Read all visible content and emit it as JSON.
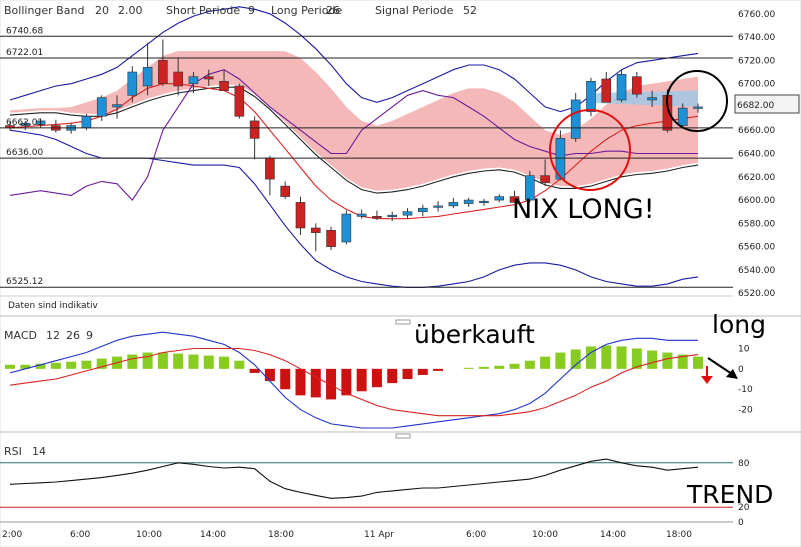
{
  "panels": {
    "price": {
      "indicator_name": "Bollinger Band",
      "params": [
        {
          "label": "20",
          "color": "#1a1aa6"
        },
        {
          "label": "2.00",
          "color": "#1a1aa6"
        },
        {
          "label": "Short Periode",
          "color": "#444"
        },
        {
          "label": "9",
          "color": "#444"
        },
        {
          "label": "Long Periode",
          "color": "#444"
        },
        {
          "label": "26",
          "color": "#444"
        },
        {
          "label": "Signal Periode",
          "color": "#444"
        },
        {
          "label": "52",
          "color": "#444"
        }
      ],
      "hlines": [
        "6740.68",
        "6722.01",
        "6662.01",
        "6636.00",
        "6525.12"
      ],
      "current_price": "6682.00",
      "note": "Daten sind indikativ"
    },
    "macd": {
      "name": "MACD",
      "params": [
        {
          "label": "12",
          "color": "#cc0000"
        },
        {
          "label": "26",
          "color": "#cc0000"
        },
        {
          "label": "9",
          "color": "#cc0000"
        }
      ]
    },
    "rsi": {
      "name": "RSI",
      "param": "14"
    }
  },
  "annotations": {
    "nix_long": "NIX LONG!",
    "ueberkauft": "überkauft",
    "long": "long",
    "trend": "TREND"
  },
  "colors": {
    "bull": "#1e90d6",
    "bear": "#cc2222",
    "cloud": "#f2a0a0",
    "cloud_blue": "#9cc8e8",
    "band": "#1a1aa6",
    "macd_pos": "#88cc22",
    "macd_neg": "#cc1111"
  },
  "chart_data": [
    {
      "type": "candlestick",
      "title": "Bollinger Band 20 2.00 Short Periode 9 Long Periode 26 Signal Periode 52",
      "x_ticks": [
        "2:00",
        "6:00",
        "10:00",
        "14:00",
        "18:00",
        "11 Apr",
        "6:00",
        "10:00",
        "14:00",
        "18:00"
      ],
      "y_ticks": [
        6760,
        6740,
        6720,
        6700,
        6680,
        6660,
        6640,
        6620,
        6600,
        6580,
        6560,
        6540,
        6520
      ],
      "ylim": [
        6515,
        6765
      ],
      "candles_ohlc": [
        [
          6664,
          6668,
          6660,
          6662
        ],
        [
          6664,
          6668,
          6660,
          6666
        ],
        [
          6665,
          6670,
          6662,
          6668
        ],
        [
          6664,
          6669,
          6658,
          6660
        ],
        [
          6660,
          6666,
          6657,
          6664
        ],
        [
          6662,
          6674,
          6660,
          6672
        ],
        [
          6672,
          6690,
          6668,
          6688
        ],
        [
          6680,
          6690,
          6670,
          6682
        ],
        [
          6690,
          6715,
          6684,
          6710
        ],
        [
          6698,
          6735,
          6690,
          6714
        ],
        [
          6720,
          6738,
          6698,
          6700
        ],
        [
          6710,
          6722,
          6690,
          6698
        ],
        [
          6700,
          6710,
          6692,
          6706
        ],
        [
          6706,
          6712,
          6698,
          6704
        ],
        [
          6702,
          6712,
          6694,
          6694
        ],
        [
          6698,
          6700,
          6670,
          6672
        ],
        [
          6668,
          6672,
          6635,
          6653
        ],
        [
          6636,
          6638,
          6604,
          6618
        ],
        [
          6612,
          6616,
          6601,
          6603
        ],
        [
          6598,
          6603,
          6570,
          6576
        ],
        [
          6576,
          6580,
          6556,
          6572
        ],
        [
          6574,
          6577,
          6557,
          6560
        ],
        [
          6564,
          6591,
          6562,
          6588
        ],
        [
          6586,
          6592,
          6584,
          6588
        ],
        [
          6586,
          6591,
          6583,
          6585
        ],
        [
          6586,
          6590,
          6582,
          6587
        ],
        [
          6587,
          6593,
          6584,
          6590
        ],
        [
          6590,
          6596,
          6586,
          6593
        ],
        [
          6594,
          6599,
          6590,
          6595
        ],
        [
          6595,
          6602,
          6593,
          6598
        ],
        [
          6597,
          6602,
          6594,
          6600
        ],
        [
          6598,
          6601,
          6595,
          6599
        ],
        [
          6600,
          6605,
          6598,
          6603
        ],
        [
          6603,
          6608,
          6599,
          6598
        ],
        [
          6600,
          6625,
          6598,
          6621
        ],
        [
          6621,
          6635,
          6612,
          6615
        ],
        [
          6618,
          6660,
          6617,
          6653
        ],
        [
          6653,
          6692,
          6650,
          6686
        ],
        [
          6676,
          6705,
          6672,
          6702
        ],
        [
          6704,
          6710,
          6688,
          6684
        ],
        [
          6686,
          6712,
          6684,
          6708
        ],
        [
          6706,
          6710,
          6688,
          6691
        ],
        [
          6686,
          6694,
          6680,
          6688
        ],
        [
          6690,
          6695,
          6658,
          6660
        ],
        [
          6664,
          6683,
          6662,
          6679
        ],
        [
          6680,
          6683,
          6675,
          6680
        ]
      ],
      "series": [
        {
          "name": "Bollinger Band upper",
          "values": [
            6686,
            6690,
            6694,
            6698,
            6700,
            6704,
            6708,
            6714,
            6724,
            6734,
            6744,
            6752,
            6758,
            6762,
            6764,
            6766,
            6764,
            6760,
            6752,
            6742,
            6730,
            6716,
            6700,
            6688,
            6684,
            6688,
            6694,
            6700,
            6706,
            6712,
            6716,
            6716,
            6712,
            6704,
            6692,
            6680,
            6676,
            6680,
            6690,
            6702,
            6712,
            6718,
            6720,
            6722,
            6724,
            6726
          ]
        },
        {
          "name": "Bollinger Band lower",
          "values": [
            6660,
            6658,
            6656,
            6652,
            6646,
            6640,
            6636,
            6636,
            6636,
            6636,
            6634,
            6632,
            6630,
            6630,
            6630,
            6628,
            6614,
            6596,
            6578,
            6562,
            6548,
            6540,
            6534,
            6530,
            6528,
            6526,
            6525,
            6525,
            6526,
            6528,
            6530,
            6534,
            6540,
            6544,
            6546,
            6546,
            6544,
            6540,
            6534,
            6530,
            6528,
            6526,
            6526,
            6528,
            6532,
            6534
          ]
        },
        {
          "name": "Bollinger Band middle",
          "values": [
            6673,
            6674,
            6675,
            6675,
            6673,
            6672,
            6672,
            6675,
            6680,
            6685,
            6689,
            6692,
            6694,
            6696,
            6697,
            6697,
            6689,
            6678,
            6665,
            6652,
            6639,
            6628,
            6617,
            6609,
            6606,
            6607,
            6609,
            6612,
            6616,
            6620,
            6623,
            6625,
            6626,
            6624,
            6619,
            6613,
            6610,
            6610,
            6612,
            6616,
            6620,
            6622,
            6623,
            6625,
            6628,
            6630
          ]
        },
        {
          "name": "Moving average red",
          "values": [
            6662,
            6663,
            6664,
            6665,
            6666,
            6668,
            6672,
            6678,
            6688,
            6696,
            6700,
            6700,
            6698,
            6696,
            6694,
            6688,
            6676,
            6660,
            6644,
            6628,
            6612,
            6600,
            6592,
            6586,
            6584,
            6584,
            6584,
            6585,
            6586,
            6588,
            6590,
            6592,
            6594,
            6596,
            6600,
            6608,
            6618,
            6630,
            6642,
            6652,
            6660,
            6664,
            6666,
            6668,
            6670,
            6672
          ]
        },
        {
          "name": "Moving average black",
          "values": [
            6674,
            6675,
            6676,
            6676,
            6676,
            6677,
            6678,
            6679,
            6680,
            6680,
            6680,
            6680,
            6679,
            6678,
            6676,
            6672,
            6665,
            6656,
            6646,
            6636,
            6626,
            6617,
            6610,
            6604,
            6600,
            6596,
            6594,
            6593,
            6593,
            6594,
            6595,
            6597,
            6599,
            6602,
            6606,
            6610,
            6614,
            6618,
            6622,
            6626,
            6630,
            6634,
            6637,
            6640,
            6642,
            6644
          ]
        },
        {
          "name": "Lagging line purple",
          "values": [
            6604,
            6606,
            6608,
            6606,
            6604,
            6612,
            6616,
            6614,
            6600,
            6620,
            6660,
            6680,
            6700,
            6708,
            6712,
            6704,
            6692,
            6680,
            6670,
            6660,
            6650,
            6640,
            6640,
            6660,
            6670,
            6680,
            6690,
            6694,
            6690,
            6688,
            6680,
            6672,
            6662,
            6652,
            6646,
            6642,
            6638,
            6640,
            6640,
            6642,
            6642,
            6640,
            6640,
            6640,
            6640,
            6640
          ]
        }
      ]
    },
    {
      "type": "bar",
      "title": "MACD 12 26 9",
      "y_ticks": [
        10,
        0,
        -10,
        -20
      ],
      "ylim": [
        -30,
        22
      ],
      "histogram": [
        2,
        2,
        2.5,
        3,
        3.5,
        4,
        5,
        6,
        7,
        8,
        8,
        7.5,
        7,
        6.5,
        6,
        4,
        -2,
        -6,
        -10,
        -13,
        -14,
        -15,
        -13,
        -11,
        -9,
        -7,
        -5,
        -3,
        -1,
        0,
        0.5,
        1,
        1.5,
        2.5,
        4,
        6,
        8,
        9.5,
        11,
        11.5,
        11,
        10,
        9,
        8,
        7,
        6
      ],
      "series": [
        {
          "name": "MACD line blue",
          "values": [
            -2,
            0,
            2,
            4,
            6,
            8,
            11,
            14,
            16,
            17,
            18,
            17,
            16,
            14,
            12,
            8,
            2,
            -6,
            -14,
            -20,
            -24,
            -27,
            -28,
            -29,
            -29,
            -29,
            -28,
            -27,
            -26,
            -25,
            -24,
            -23,
            -22,
            -20,
            -17,
            -12,
            -5,
            2,
            8,
            12,
            14,
            15,
            15,
            14,
            14,
            14
          ]
        },
        {
          "name": "Signal line red",
          "values": [
            -8,
            -7,
            -6,
            -5,
            -3,
            -1,
            1,
            3,
            5,
            6,
            8,
            9,
            10,
            10,
            10,
            10,
            9,
            7,
            4,
            0,
            -4,
            -8,
            -12,
            -15,
            -18,
            -20,
            -21,
            -22,
            -23,
            -23,
            -23,
            -23,
            -23,
            -22,
            -21,
            -19,
            -16,
            -13,
            -9,
            -6,
            -2,
            1,
            3,
            5,
            6,
            7
          ]
        }
      ]
    },
    {
      "type": "line",
      "title": "RSI 14",
      "y_ticks": [
        80,
        20,
        0
      ],
      "ylim": [
        0,
        100
      ],
      "series": [
        {
          "name": "RSI",
          "values": [
            51,
            52,
            53,
            54,
            56,
            58,
            60,
            63,
            66,
            70,
            75,
            80,
            78,
            75,
            73,
            74,
            72,
            55,
            45,
            40,
            36,
            32,
            33,
            35,
            40,
            42,
            44,
            46,
            46,
            48,
            50,
            52,
            54,
            56,
            58,
            63,
            70,
            76,
            82,
            85,
            80,
            76,
            74,
            70,
            72,
            74
          ]
        }
      ],
      "hlines": [
        80,
        20
      ]
    }
  ]
}
